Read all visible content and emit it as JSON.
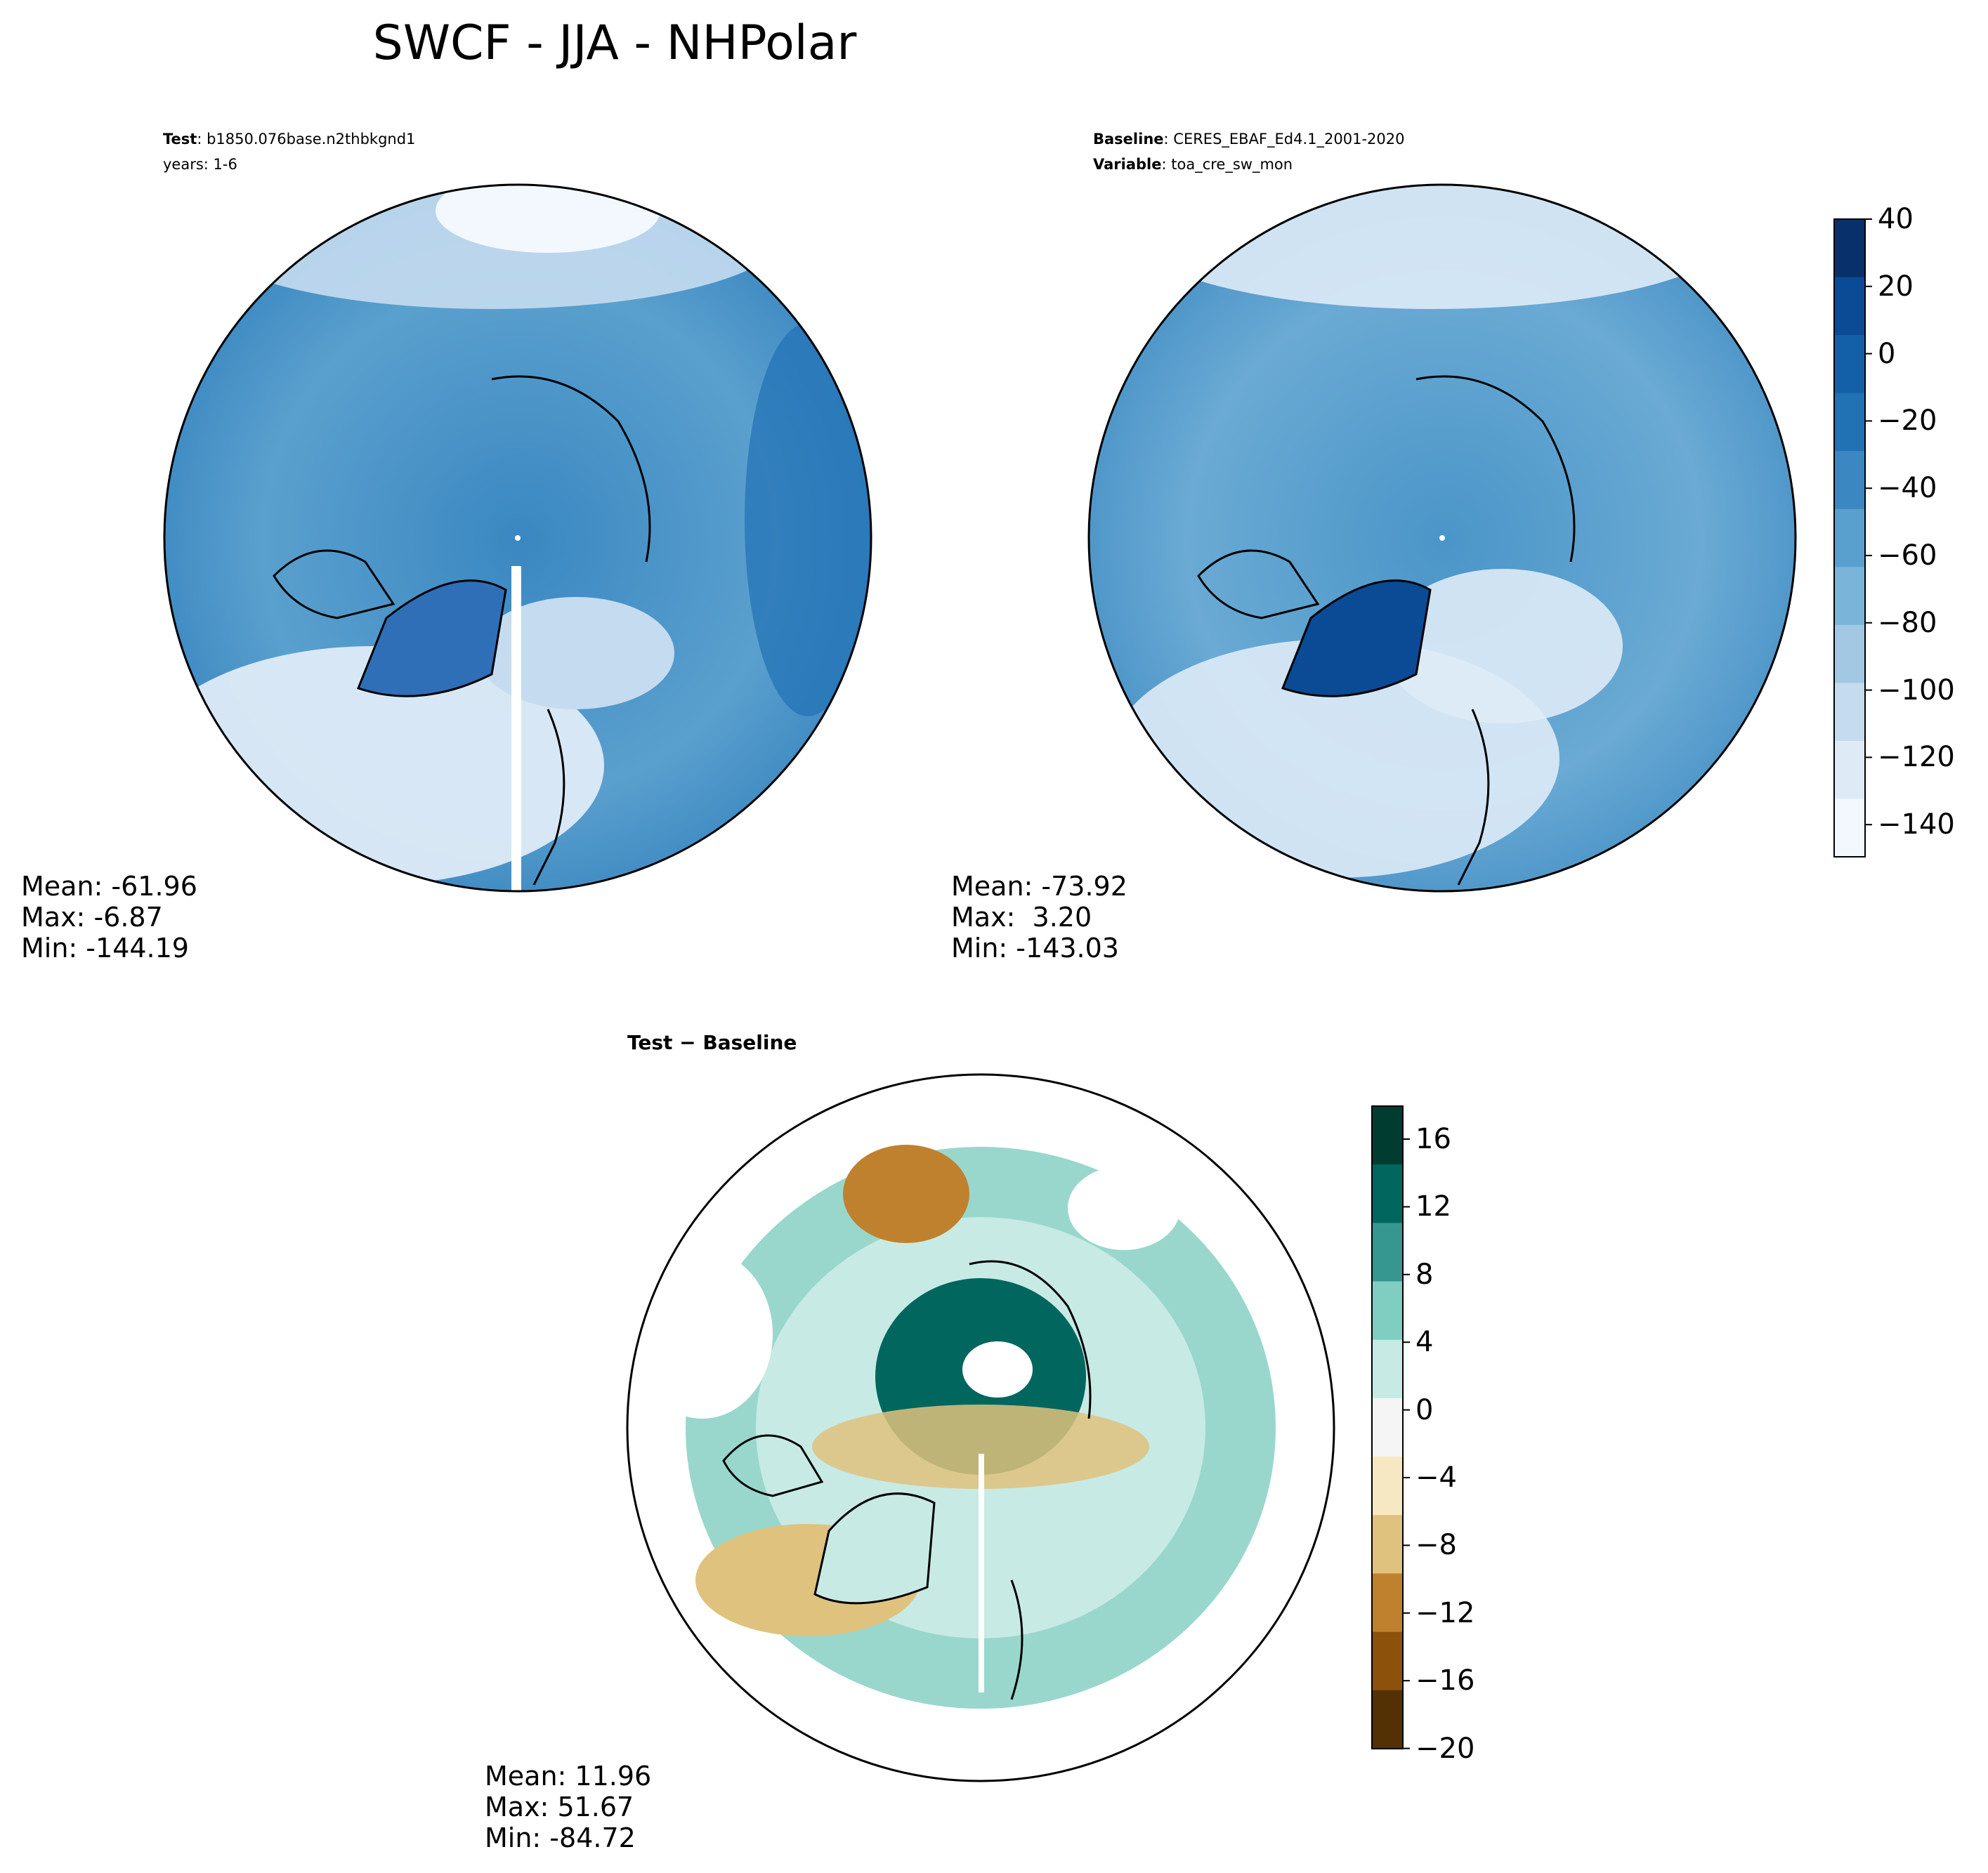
{
  "title": "SWCF - JJA - NHPolar",
  "panels": {
    "test": {
      "label_key": "Test",
      "label_value": "b1850.076base.n2thbkgnd1",
      "years": "years: 1-6",
      "stats": {
        "mean": "Mean: -61.96",
        "max": "Max: -6.87",
        "min": "Min: -144.19"
      }
    },
    "baseline": {
      "label_key": "Baseline",
      "label_value": "CERES_EBAF_Ed4.1_2001-2020",
      "variable_key": "Variable",
      "variable_value": "toa_cre_sw_mon",
      "stats": {
        "mean": "Mean: -73.92",
        "max": "Max:  3.20",
        "min": "Min: -143.03"
      }
    },
    "difference": {
      "title": "Test − Baseline",
      "stats": {
        "mean": "Mean: 11.96",
        "max": "Max: 51.67",
        "min": "Min: -84.72"
      }
    }
  },
  "colorbars": {
    "main": {
      "ticks": [
        "40",
        "20",
        "0",
        "−20",
        "−40",
        "−60",
        "−80",
        "−100",
        "−120",
        "−140"
      ],
      "colors": [
        "#08306b",
        "#0b4a94",
        "#1460a8",
        "#2171b5",
        "#3a87c1",
        "#5aa0ce",
        "#7ab5d9",
        "#a3c8e3",
        "#c5dbef",
        "#deebf7",
        "#f2f8fd"
      ]
    },
    "diff": {
      "ticks": [
        "16",
        "12",
        "8",
        "4",
        "0",
        "−4",
        "−8",
        "−12",
        "−16",
        "−20"
      ],
      "colors": [
        "#003c30",
        "#01665e",
        "#35978f",
        "#80cdc1",
        "#c7eae5",
        "#f5f5f5",
        "#f6e8c3",
        "#dfc27d",
        "#bf812d",
        "#8c510a",
        "#543005"
      ]
    }
  }
}
